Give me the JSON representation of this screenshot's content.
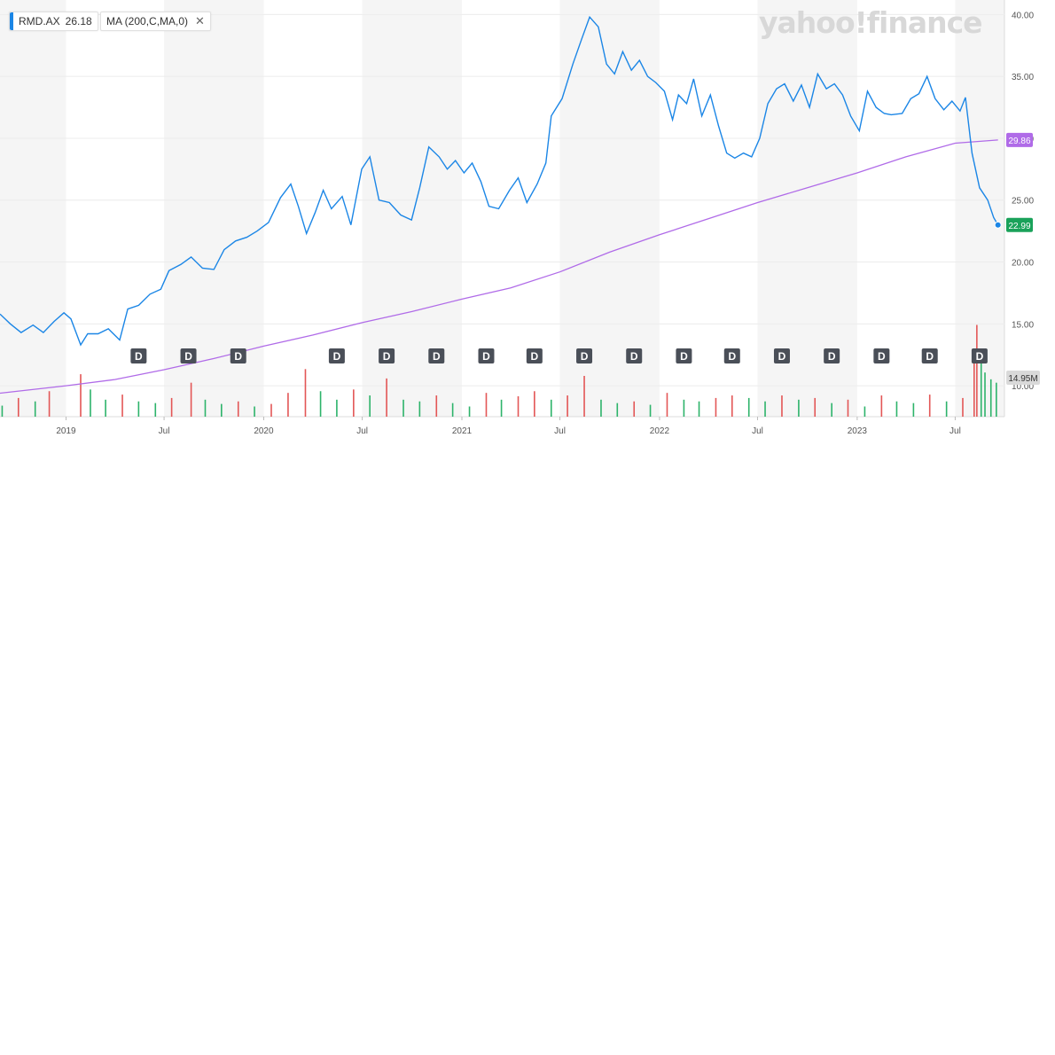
{
  "legend": {
    "symbol": "RMD.AX",
    "price": "26.18",
    "indicator": "MA (200,C,MA,0)",
    "close_glyph": "✕"
  },
  "brand": "yahoo!finance",
  "colors": {
    "price_line": "#1b86e6",
    "ma_line": "#b06be8",
    "volume_up": "#2db36a",
    "volume_down": "#e35656",
    "band": "#f5f5f5",
    "last_price_badge": "#1aa25a",
    "ma_badge": "#b06be8",
    "dividend_badge": "#4a4f58"
  },
  "chart_data": {
    "type": "line",
    "y_axis": {
      "ticks": [
        "40.00",
        "35.00",
        "30.00",
        "25.00",
        "20.00",
        "15.00",
        "10.00"
      ],
      "range": [
        7.5,
        40.6
      ]
    },
    "x_axis": {
      "labels": [
        {
          "label": "2019",
          "date": "2019-01-01"
        },
        {
          "label": "Jul",
          "date": "2019-07-01"
        },
        {
          "label": "2020",
          "date": "2020-01-01"
        },
        {
          "label": "Jul",
          "date": "2020-07-01"
        },
        {
          "label": "2021",
          "date": "2021-01-01"
        },
        {
          "label": "Jul",
          "date": "2021-07-01"
        },
        {
          "label": "2022",
          "date": "2022-01-01"
        },
        {
          "label": "Jul",
          "date": "2022-07-01"
        },
        {
          "label": "2023",
          "date": "2023-01-01"
        },
        {
          "label": "Jul",
          "date": "2023-07-01"
        }
      ],
      "range": [
        "2018-09-01",
        "2023-09-30"
      ]
    },
    "series": [
      {
        "name": "RMD.AX",
        "points": [
          [
            "2018-09-01",
            15.8
          ],
          [
            "2018-09-20",
            15.0
          ],
          [
            "2018-10-10",
            14.3
          ],
          [
            "2018-11-01",
            14.9
          ],
          [
            "2018-11-20",
            14.3
          ],
          [
            "2018-12-10",
            15.2
          ],
          [
            "2018-12-28",
            15.9
          ],
          [
            "2019-01-10",
            15.4
          ],
          [
            "2019-01-28",
            13.3
          ],
          [
            "2019-02-10",
            14.2
          ],
          [
            "2019-03-01",
            14.2
          ],
          [
            "2019-03-20",
            14.6
          ],
          [
            "2019-04-10",
            13.7
          ],
          [
            "2019-04-25",
            16.2
          ],
          [
            "2019-05-15",
            16.5
          ],
          [
            "2019-06-05",
            17.4
          ],
          [
            "2019-06-25",
            17.8
          ],
          [
            "2019-07-10",
            19.3
          ],
          [
            "2019-08-01",
            19.8
          ],
          [
            "2019-08-20",
            20.4
          ],
          [
            "2019-09-10",
            19.5
          ],
          [
            "2019-10-01",
            19.4
          ],
          [
            "2019-10-20",
            21.0
          ],
          [
            "2019-11-10",
            21.7
          ],
          [
            "2019-12-01",
            22.0
          ],
          [
            "2019-12-20",
            22.5
          ],
          [
            "2020-01-10",
            23.2
          ],
          [
            "2020-02-01",
            25.2
          ],
          [
            "2020-02-20",
            26.3
          ],
          [
            "2020-03-05",
            24.5
          ],
          [
            "2020-03-20",
            22.3
          ],
          [
            "2020-04-05",
            24.0
          ],
          [
            "2020-04-20",
            25.8
          ],
          [
            "2020-05-05",
            24.3
          ],
          [
            "2020-05-25",
            25.3
          ],
          [
            "2020-06-10",
            23.0
          ],
          [
            "2020-06-30",
            27.5
          ],
          [
            "2020-07-15",
            28.5
          ],
          [
            "2020-08-01",
            25.0
          ],
          [
            "2020-08-20",
            24.8
          ],
          [
            "2020-09-10",
            23.8
          ],
          [
            "2020-09-30",
            23.4
          ],
          [
            "2020-10-15",
            26.0
          ],
          [
            "2020-11-01",
            29.3
          ],
          [
            "2020-11-20",
            28.5
          ],
          [
            "2020-12-05",
            27.5
          ],
          [
            "2020-12-20",
            28.2
          ],
          [
            "2021-01-05",
            27.2
          ],
          [
            "2021-01-20",
            28.0
          ],
          [
            "2021-02-05",
            26.5
          ],
          [
            "2021-02-20",
            24.5
          ],
          [
            "2021-03-10",
            24.3
          ],
          [
            "2021-03-30",
            25.8
          ],
          [
            "2021-04-15",
            26.8
          ],
          [
            "2021-05-01",
            24.8
          ],
          [
            "2021-05-20",
            26.3
          ],
          [
            "2021-06-05",
            28.0
          ],
          [
            "2021-06-15",
            31.8
          ],
          [
            "2021-07-05",
            33.2
          ],
          [
            "2021-07-25",
            36.0
          ],
          [
            "2021-08-10",
            38.0
          ],
          [
            "2021-08-25",
            39.8
          ],
          [
            "2021-09-10",
            39.0
          ],
          [
            "2021-09-25",
            36.0
          ],
          [
            "2021-10-10",
            35.2
          ],
          [
            "2021-10-25",
            37.0
          ],
          [
            "2021-11-10",
            35.5
          ],
          [
            "2021-11-25",
            36.3
          ],
          [
            "2021-12-10",
            35.0
          ],
          [
            "2021-12-25",
            34.5
          ],
          [
            "2022-01-10",
            33.8
          ],
          [
            "2022-01-25",
            31.5
          ],
          [
            "2022-02-05",
            33.5
          ],
          [
            "2022-02-20",
            32.8
          ],
          [
            "2022-03-05",
            34.8
          ],
          [
            "2022-03-20",
            31.8
          ],
          [
            "2022-04-05",
            33.5
          ],
          [
            "2022-04-20",
            31.0
          ],
          [
            "2022-05-05",
            28.8
          ],
          [
            "2022-05-20",
            28.4
          ],
          [
            "2022-06-05",
            28.8
          ],
          [
            "2022-06-20",
            28.5
          ],
          [
            "2022-07-05",
            30.0
          ],
          [
            "2022-07-20",
            32.8
          ],
          [
            "2022-08-05",
            34.0
          ],
          [
            "2022-08-20",
            34.4
          ],
          [
            "2022-09-05",
            33.0
          ],
          [
            "2022-09-20",
            34.3
          ],
          [
            "2022-10-05",
            32.5
          ],
          [
            "2022-10-20",
            35.2
          ],
          [
            "2022-11-05",
            34.0
          ],
          [
            "2022-11-20",
            34.4
          ],
          [
            "2022-12-05",
            33.5
          ],
          [
            "2022-12-20",
            31.8
          ],
          [
            "2023-01-05",
            30.6
          ],
          [
            "2023-01-20",
            33.8
          ],
          [
            "2023-02-05",
            32.5
          ],
          [
            "2023-02-20",
            32.0
          ],
          [
            "2023-03-05",
            31.9
          ],
          [
            "2023-03-25",
            32.0
          ],
          [
            "2023-04-10",
            33.2
          ],
          [
            "2023-04-25",
            33.6
          ],
          [
            "2023-05-10",
            35.0
          ],
          [
            "2023-05-25",
            33.2
          ],
          [
            "2023-06-10",
            32.3
          ],
          [
            "2023-06-25",
            33.0
          ],
          [
            "2023-07-10",
            32.2
          ],
          [
            "2023-07-20",
            33.3
          ],
          [
            "2023-08-01",
            28.8
          ],
          [
            "2023-08-15",
            26.0
          ],
          [
            "2023-08-30",
            25.0
          ],
          [
            "2023-09-10",
            23.6
          ],
          [
            "2023-09-18",
            22.99
          ]
        ]
      },
      {
        "name": "MA (200,C,MA,0)",
        "points": [
          [
            "2018-09-01",
            9.4
          ],
          [
            "2019-01-01",
            10.0
          ],
          [
            "2019-04-01",
            10.5
          ],
          [
            "2019-07-01",
            11.3
          ],
          [
            "2019-10-01",
            12.2
          ],
          [
            "2020-01-01",
            13.2
          ],
          [
            "2020-04-01",
            14.1
          ],
          [
            "2020-07-01",
            15.1
          ],
          [
            "2020-10-01",
            16.0
          ],
          [
            "2021-01-01",
            17.0
          ],
          [
            "2021-04-01",
            17.9
          ],
          [
            "2021-07-01",
            19.2
          ],
          [
            "2021-10-01",
            20.8
          ],
          [
            "2022-01-01",
            22.2
          ],
          [
            "2022-04-01",
            23.5
          ],
          [
            "2022-07-01",
            24.8
          ],
          [
            "2022-10-01",
            26.0
          ],
          [
            "2023-01-01",
            27.2
          ],
          [
            "2023-04-01",
            28.5
          ],
          [
            "2023-07-01",
            29.6
          ],
          [
            "2023-09-18",
            29.86
          ]
        ]
      },
      {
        "name": "Volume",
        "points": [
          [
            "2018-09-05",
            1.3
          ],
          [
            "2018-10-05",
            2.2
          ],
          [
            "2018-11-05",
            1.8
          ],
          [
            "2018-12-01",
            3.0
          ],
          [
            "2019-01-28",
            5.0
          ],
          [
            "2019-02-15",
            3.2
          ],
          [
            "2019-03-15",
            2.0
          ],
          [
            "2019-04-15",
            2.6
          ],
          [
            "2019-05-15",
            1.8
          ],
          [
            "2019-06-15",
            1.6
          ],
          [
            "2019-07-15",
            2.2
          ],
          [
            "2019-08-20",
            4.0
          ],
          [
            "2019-09-15",
            2.0
          ],
          [
            "2019-10-15",
            1.5
          ],
          [
            "2019-11-15",
            1.8
          ],
          [
            "2019-12-15",
            1.2
          ],
          [
            "2020-01-15",
            1.5
          ],
          [
            "2020-02-15",
            2.8
          ],
          [
            "2020-03-18",
            5.6
          ],
          [
            "2020-04-15",
            3.0
          ],
          [
            "2020-05-15",
            2.0
          ],
          [
            "2020-06-15",
            3.2
          ],
          [
            "2020-07-15",
            2.5
          ],
          [
            "2020-08-15",
            4.5
          ],
          [
            "2020-09-15",
            2.0
          ],
          [
            "2020-10-15",
            1.8
          ],
          [
            "2020-11-15",
            2.5
          ],
          [
            "2020-12-15",
            1.6
          ],
          [
            "2021-01-15",
            1.2
          ],
          [
            "2021-02-15",
            2.8
          ],
          [
            "2021-03-15",
            2.0
          ],
          [
            "2021-04-15",
            2.4
          ],
          [
            "2021-05-15",
            3.0
          ],
          [
            "2021-06-15",
            2.0
          ],
          [
            "2021-07-15",
            2.5
          ],
          [
            "2021-08-15",
            4.8
          ],
          [
            "2021-09-15",
            2.0
          ],
          [
            "2021-10-15",
            1.6
          ],
          [
            "2021-11-15",
            1.8
          ],
          [
            "2021-12-15",
            1.4
          ],
          [
            "2022-01-15",
            2.8
          ],
          [
            "2022-02-15",
            2.0
          ],
          [
            "2022-03-15",
            1.8
          ],
          [
            "2022-04-15",
            2.2
          ],
          [
            "2022-05-15",
            2.5
          ],
          [
            "2022-06-15",
            2.2
          ],
          [
            "2022-07-15",
            1.8
          ],
          [
            "2022-08-15",
            2.5
          ],
          [
            "2022-09-15",
            2.0
          ],
          [
            "2022-10-15",
            2.2
          ],
          [
            "2022-11-15",
            1.6
          ],
          [
            "2022-12-15",
            2.0
          ],
          [
            "2023-01-15",
            1.2
          ],
          [
            "2023-02-15",
            2.5
          ],
          [
            "2023-03-15",
            1.8
          ],
          [
            "2023-04-15",
            1.6
          ],
          [
            "2023-05-15",
            2.6
          ],
          [
            "2023-06-15",
            1.8
          ],
          [
            "2023-07-15",
            2.2
          ],
          [
            "2023-08-05",
            7.0
          ],
          [
            "2023-08-10",
            10.8
          ],
          [
            "2023-08-18",
            8.0
          ],
          [
            "2023-08-25",
            5.2
          ],
          [
            "2023-09-05",
            4.4
          ],
          [
            "2023-09-15",
            4.0
          ]
        ]
      }
    ],
    "dividend_markers": {
      "label": "D",
      "dates": [
        "2019-05-15",
        "2019-08-15",
        "2019-11-15",
        "2020-05-15",
        "2020-08-15",
        "2020-11-15",
        "2021-02-15",
        "2021-05-15",
        "2021-08-15",
        "2021-11-15",
        "2022-02-15",
        "2022-05-15",
        "2022-08-15",
        "2022-11-15",
        "2023-02-15",
        "2023-05-15",
        "2023-08-15"
      ]
    },
    "badges": {
      "ma": "29.86",
      "last": "22.99",
      "volume": "14.95M"
    },
    "grid": true,
    "legend_position": "top-left"
  }
}
